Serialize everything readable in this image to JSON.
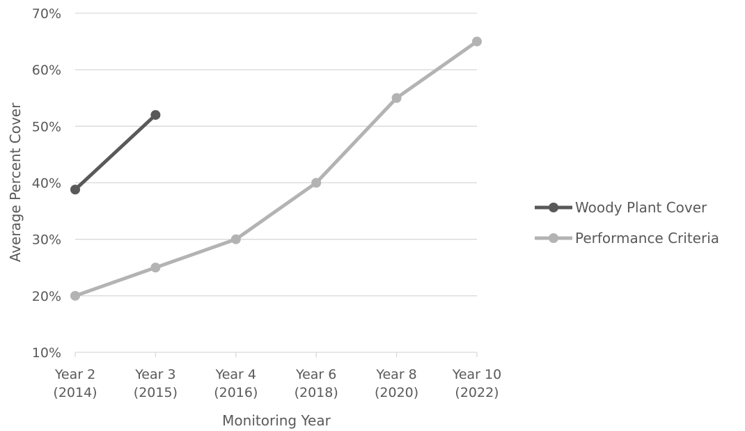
{
  "chart_data": {
    "type": "line",
    "title": "",
    "xlabel": "Monitoring Year",
    "ylabel": "Average Percent Cover",
    "categories": [
      [
        "Year 2",
        "(2014)"
      ],
      [
        "Year 3",
        "(2015)"
      ],
      [
        "Year 4",
        "(2016)"
      ],
      [
        "Year 6",
        "(2018)"
      ],
      [
        "Year 8",
        "(2020)"
      ],
      [
        "Year 10",
        "(2022)"
      ]
    ],
    "ylim": [
      10,
      70
    ],
    "yticks": [
      10,
      20,
      30,
      40,
      50,
      60,
      70
    ],
    "y_format": "percent",
    "grid": true,
    "legend_position": "right",
    "series": [
      {
        "name": "Woody Plant Cover",
        "values": [
          38.8,
          52,
          null,
          null,
          null,
          null
        ],
        "color": "#595959"
      },
      {
        "name": "Performance Criteria",
        "values": [
          20,
          25,
          30,
          40,
          55,
          65
        ],
        "color": "#b3b3b3"
      }
    ]
  }
}
